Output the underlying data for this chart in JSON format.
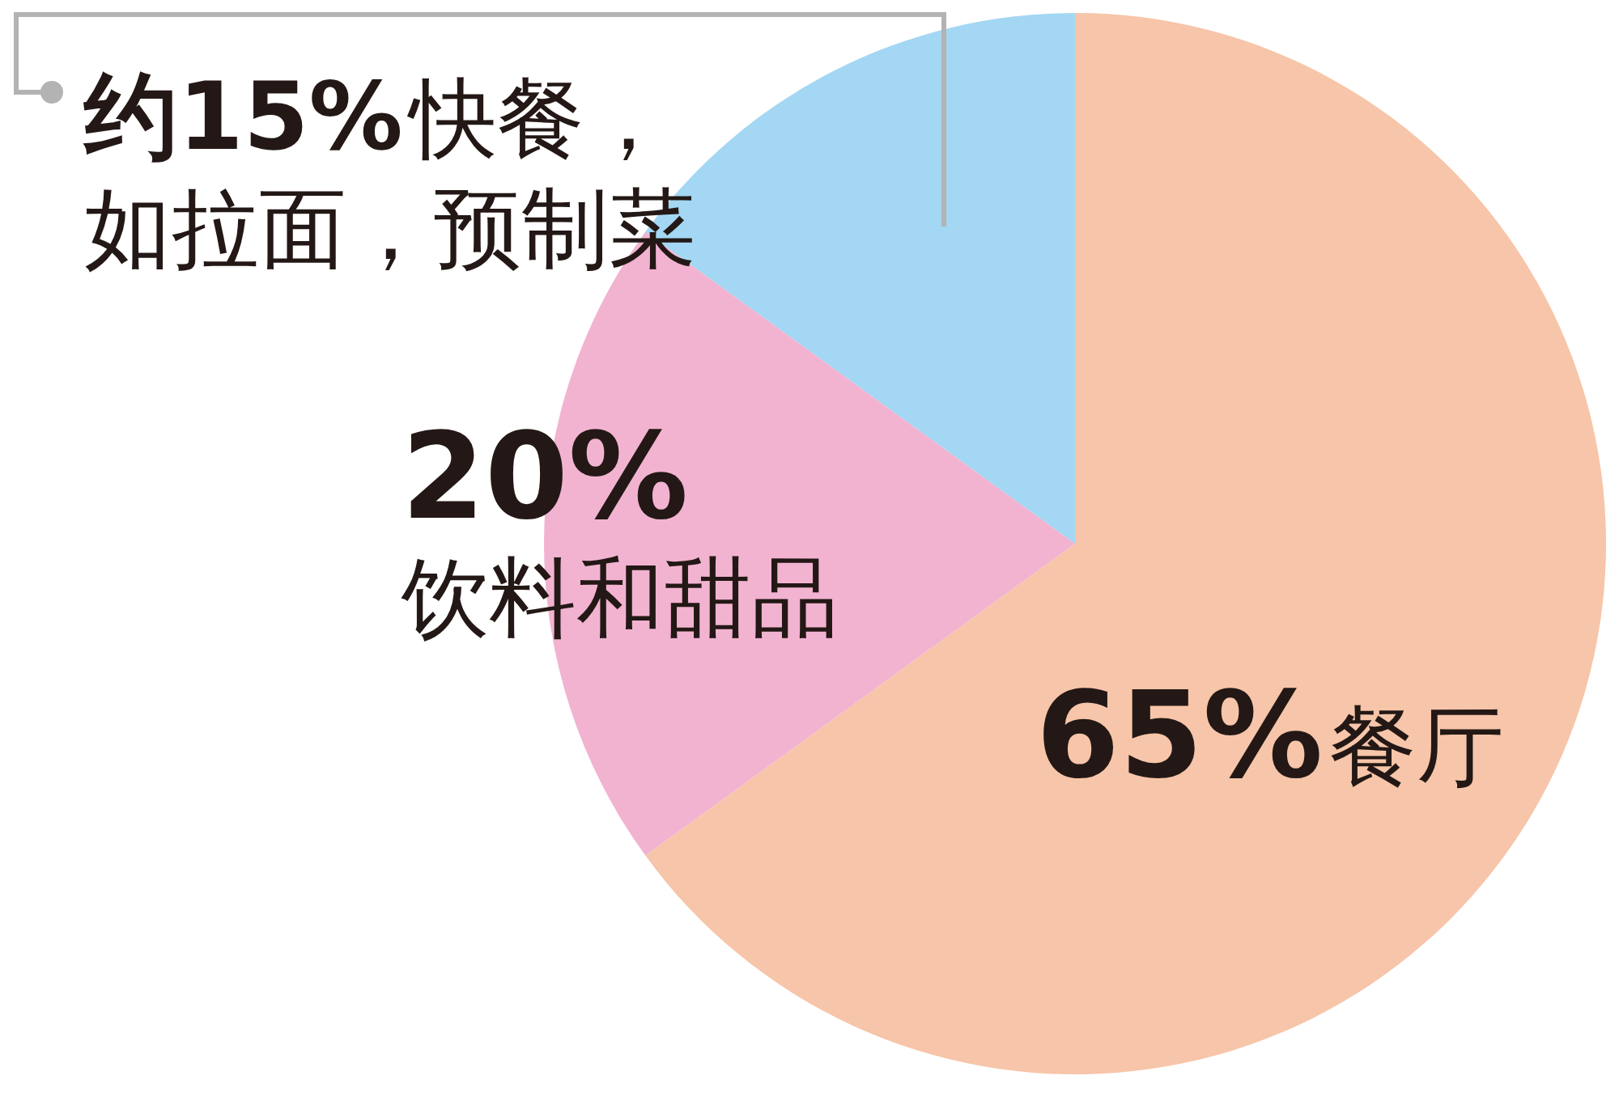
{
  "chart_data": {
    "type": "pie",
    "categories": [
      "餐厅",
      "饮料和甜品",
      "快餐，如拉面，预制菜"
    ],
    "values": [
      65,
      20,
      15
    ],
    "colors": [
      "#f7c5a9",
      "#f2b3d1",
      "#a3d7f3"
    ],
    "value_labels": [
      "65%",
      "20%",
      "约15%"
    ]
  }
}
